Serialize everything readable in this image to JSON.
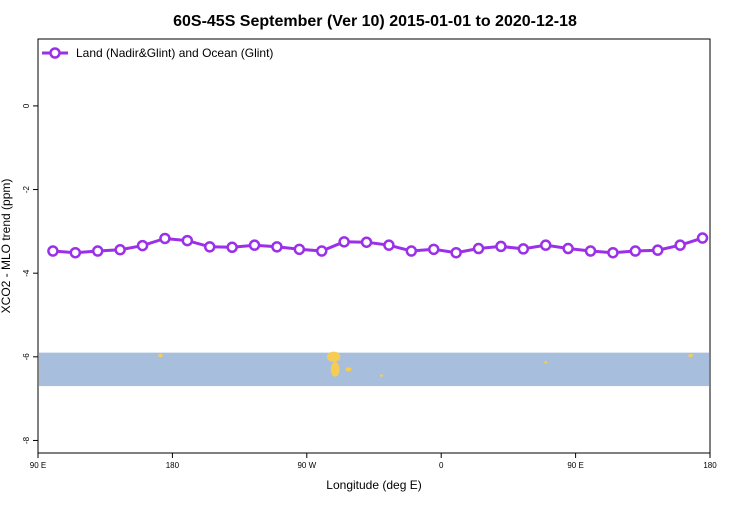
{
  "chart_data": {
    "type": "line",
    "title": "60S-45S September (Ver 10)   2015-01-01 to 2020-12-18",
    "xlabel": "Longitude (deg E)",
    "ylabel": "XCO2 - MLO trend (ppm)",
    "x_tick_labels": [
      "90 E",
      "180",
      "90 W",
      "0",
      "90 E",
      "180"
    ],
    "x_tick_values": [
      90,
      180,
      270,
      360,
      450,
      540
    ],
    "y_tick_labels": [
      "0",
      "-2",
      "-4",
      "-6",
      "-8"
    ],
    "y_tick_values": [
      0,
      -2,
      -4,
      -6,
      -8
    ],
    "xlim": [
      90,
      540
    ],
    "ylim": [
      -8.3,
      1.6
    ],
    "grid": false,
    "legend_position": "top-left",
    "series": [
      {
        "name": "Land (Nadir&Glint) and Ocean (Glint)",
        "color": "#9b30e8",
        "x": [
          100,
          115,
          130,
          145,
          160,
          175,
          190,
          205,
          220,
          235,
          250,
          265,
          280,
          295,
          310,
          325,
          340,
          355,
          370,
          385,
          400,
          415,
          430,
          445,
          460,
          475,
          490,
          505,
          520,
          535
        ],
        "y": [
          -3.47,
          -3.51,
          -3.47,
          -3.44,
          -3.34,
          -3.17,
          -3.22,
          -3.37,
          -3.38,
          -3.33,
          -3.37,
          -3.43,
          -3.47,
          -3.25,
          -3.26,
          -3.33,
          -3.47,
          -3.43,
          -3.51,
          -3.41,
          -3.36,
          -3.42,
          -3.33,
          -3.41,
          -3.47,
          -3.51,
          -3.47,
          -3.45,
          -3.33,
          -3.16
        ]
      }
    ],
    "map_strip": {
      "y_range": [
        -6.7,
        -5.9
      ],
      "ocean_color": "#a8bedd",
      "land_color": "#f6cc55",
      "land_patches": [
        {
          "lon": 172,
          "lat": -5.97,
          "w": 3,
          "h": 0.08
        },
        {
          "lon": 288,
          "lat": -6.0,
          "w": 9,
          "h": 0.25
        },
        {
          "lon": 289,
          "lat": -6.3,
          "w": 6,
          "h": 0.35
        },
        {
          "lon": 298,
          "lat": -6.3,
          "w": 4,
          "h": 0.1
        },
        {
          "lon": 320,
          "lat": -6.45,
          "w": 2,
          "h": 0.06
        },
        {
          "lon": 430,
          "lat": -6.13,
          "w": 2,
          "h": 0.06
        },
        {
          "lon": 527,
          "lat": -5.97,
          "w": 3,
          "h": 0.08
        }
      ]
    }
  }
}
